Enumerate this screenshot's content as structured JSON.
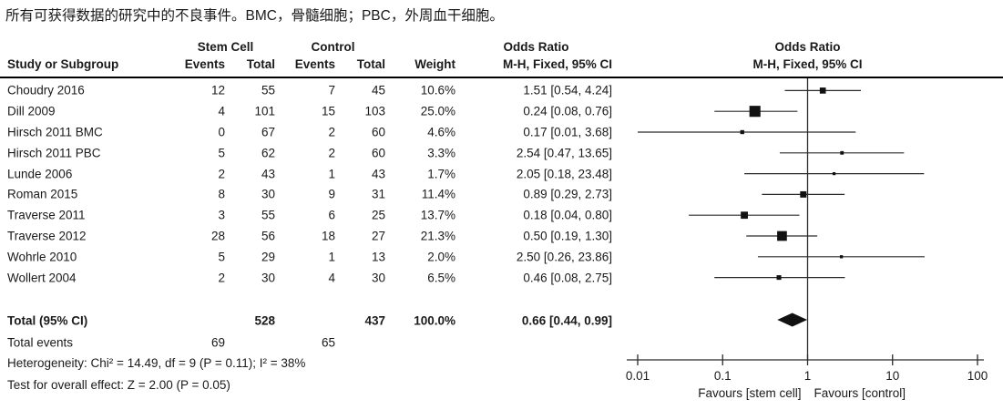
{
  "caption": "所有可获得数据的研究中的不良事件。BMC，骨髓细胞；PBC，外周血干细胞。",
  "header": {
    "study_col": "Study or Subgroup",
    "group1": "Stem Cell",
    "group2": "Control",
    "events": "Events",
    "total": "Total",
    "weight": "Weight",
    "or_title": "Odds Ratio",
    "method": "M-H, Fixed, 95% CI"
  },
  "chart_data": {
    "type": "forest",
    "effect_measure": "Odds Ratio",
    "method": "M-H, Fixed, 95% CI",
    "x_axis": {
      "scale": "log",
      "ticks": [
        0.01,
        0.1,
        1,
        10,
        100
      ],
      "labels": [
        "0.01",
        "0.1",
        "1",
        "10",
        "100"
      ],
      "left_label": "Favours [stem cell]",
      "right_label": "Favours [control]"
    },
    "studies": [
      {
        "name": "Choudry 2016",
        "events1": "12",
        "total1": "55",
        "events2": "7",
        "total2": "45",
        "weight": "10.6%",
        "weight_pct": 10.6,
        "ci_text": "1.51 [0.54, 4.24]",
        "or": 1.51,
        "ci_low": 0.54,
        "ci_high": 4.24
      },
      {
        "name": "Dill 2009",
        "events1": "4",
        "total1": "101",
        "events2": "15",
        "total2": "103",
        "weight": "25.0%",
        "weight_pct": 25.0,
        "ci_text": "0.24 [0.08, 0.76]",
        "or": 0.24,
        "ci_low": 0.08,
        "ci_high": 0.76
      },
      {
        "name": "Hirsch 2011 BMC",
        "events1": "0",
        "total1": "67",
        "events2": "2",
        "total2": "60",
        "weight": "4.6%",
        "weight_pct": 4.6,
        "ci_text": "0.17 [0.01, 3.68]",
        "or": 0.17,
        "ci_low": 0.01,
        "ci_high": 3.68
      },
      {
        "name": "Hirsch 2011 PBC",
        "events1": "5",
        "total1": "62",
        "events2": "2",
        "total2": "60",
        "weight": "3.3%",
        "weight_pct": 3.3,
        "ci_text": "2.54 [0.47, 13.65]",
        "or": 2.54,
        "ci_low": 0.47,
        "ci_high": 13.65
      },
      {
        "name": "Lunde 2006",
        "events1": "2",
        "total1": "43",
        "events2": "1",
        "total2": "43",
        "weight": "1.7%",
        "weight_pct": 1.7,
        "ci_text": "2.05 [0.18, 23.48]",
        "or": 2.05,
        "ci_low": 0.18,
        "ci_high": 23.48
      },
      {
        "name": "Roman 2015",
        "events1": "8",
        "total1": "30",
        "events2": "9",
        "total2": "31",
        "weight": "11.4%",
        "weight_pct": 11.4,
        "ci_text": "0.89 [0.29, 2.73]",
        "or": 0.89,
        "ci_low": 0.29,
        "ci_high": 2.73
      },
      {
        "name": "Traverse 2011",
        "events1": "3",
        "total1": "55",
        "events2": "6",
        "total2": "25",
        "weight": "13.7%",
        "weight_pct": 13.7,
        "ci_text": "0.18 [0.04, 0.80]",
        "or": 0.18,
        "ci_low": 0.04,
        "ci_high": 0.8
      },
      {
        "name": "Traverse 2012",
        "events1": "28",
        "total1": "56",
        "events2": "18",
        "total2": "27",
        "weight": "21.3%",
        "weight_pct": 21.3,
        "ci_text": "0.50 [0.19, 1.30]",
        "or": 0.5,
        "ci_low": 0.19,
        "ci_high": 1.3
      },
      {
        "name": "Wohrle 2010",
        "events1": "5",
        "total1": "29",
        "events2": "1",
        "total2": "13",
        "weight": "2.0%",
        "weight_pct": 2.0,
        "ci_text": "2.50 [0.26, 23.86]",
        "or": 2.5,
        "ci_low": 0.26,
        "ci_high": 23.86
      },
      {
        "name": "Wollert 2004",
        "events1": "2",
        "total1": "30",
        "events2": "4",
        "total2": "30",
        "weight": "6.5%",
        "weight_pct": 6.5,
        "ci_text": "0.46 [0.08, 2.75]",
        "or": 0.46,
        "ci_low": 0.08,
        "ci_high": 2.75
      }
    ],
    "total": {
      "label": "Total (95% CI)",
      "total1": "528",
      "total2": "437",
      "weight": "100.0%",
      "ci_text": "0.66 [0.44, 0.99]",
      "or": 0.66,
      "ci_low": 0.44,
      "ci_high": 0.99
    }
  },
  "footer": {
    "total_events_label": "Total events",
    "total_events1": "69",
    "total_events2": "65",
    "heterogeneity": "Heterogeneity: Chi² = 14.49, df = 9 (P = 0.11); I² = 38%",
    "overall_test": "Test for overall effect: Z = 2.00 (P = 0.05)"
  },
  "colors": {
    "text": "#1a1a1a",
    "line": "#2b2b2b",
    "marker": "#111111"
  }
}
